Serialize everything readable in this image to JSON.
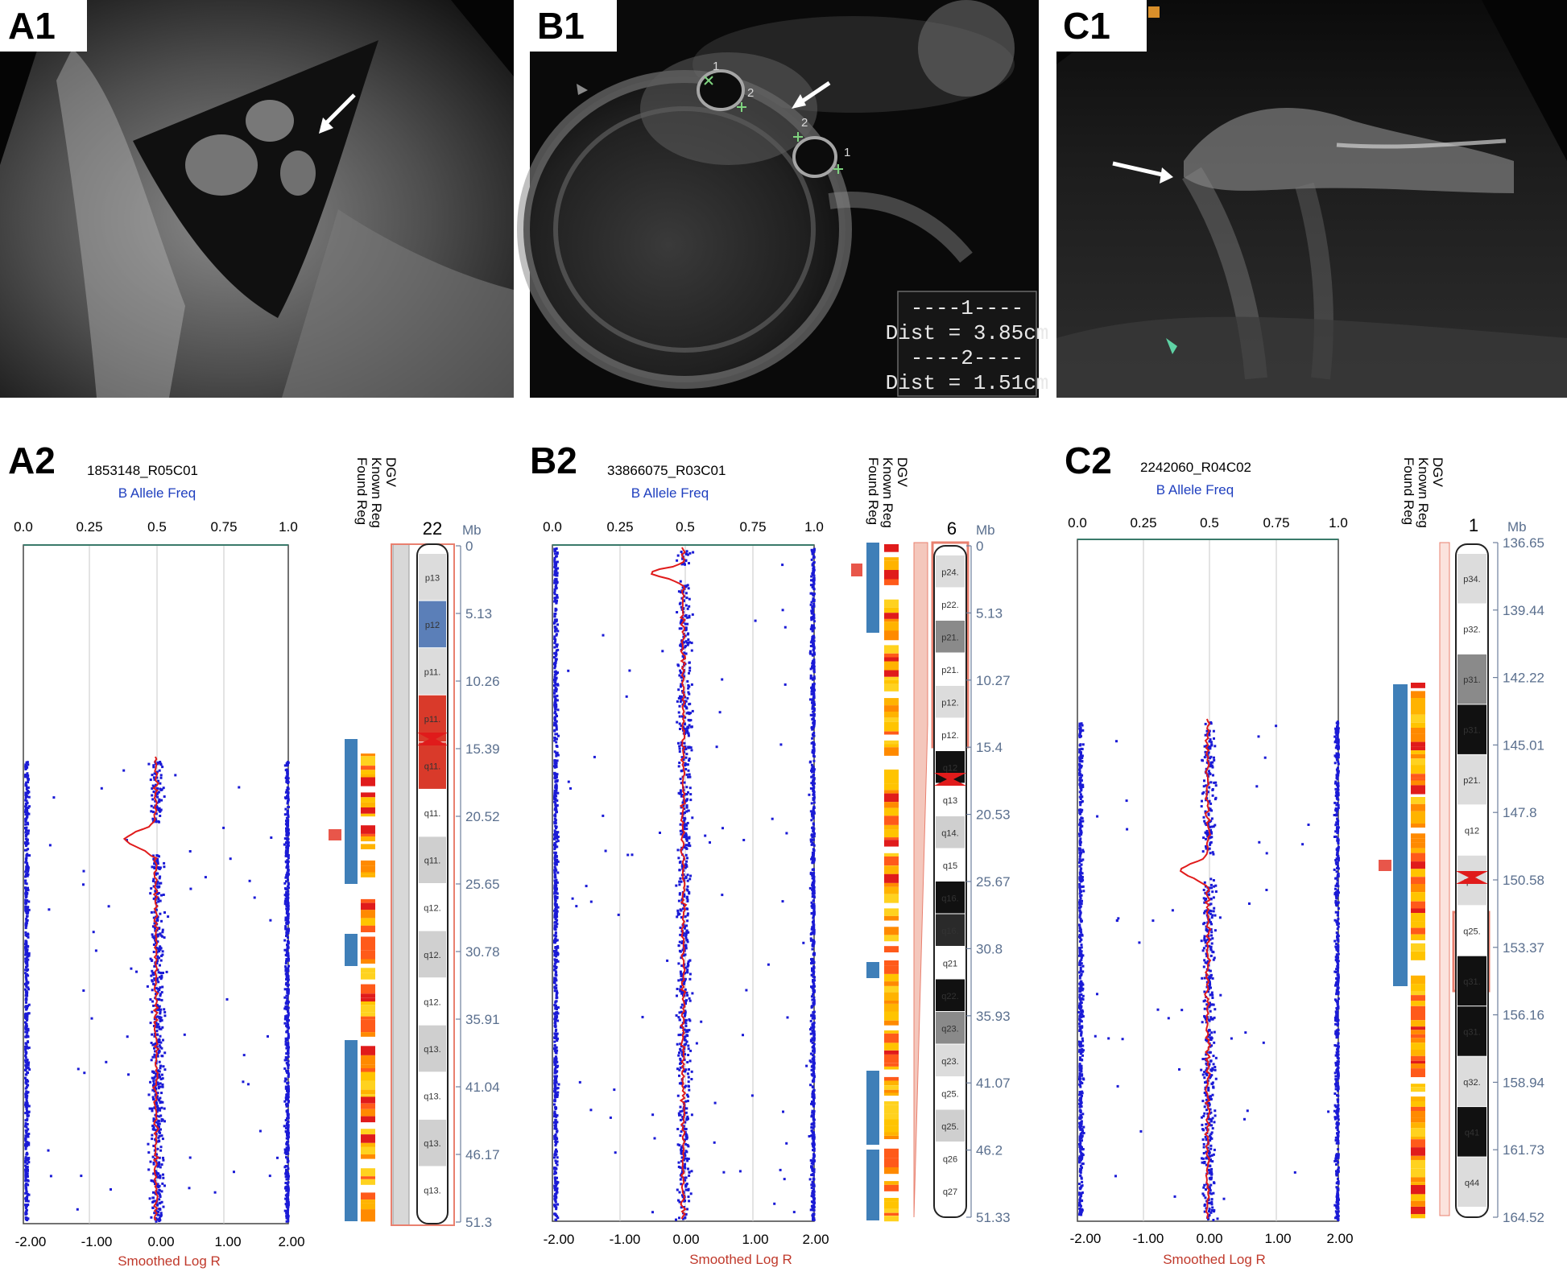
{
  "panels": [
    {
      "ultrasound": {
        "letter": "A1"
      },
      "plot": {
        "letter": "A2",
        "sample_id": "1853148_R05C01",
        "baf_label": "B Allele Freq",
        "logr_label": "Smoothed Log R",
        "baf_ticks": [
          "0.0",
          "0.25",
          "0.5",
          "0.75",
          "1.0"
        ],
        "logr_ticks": [
          "-2.00",
          "-1.00",
          "0.00",
          "1.00",
          "2.00"
        ],
        "track_labels": [
          "DGV",
          "Known Reg",
          "Found Reg"
        ],
        "chromosome": "22",
        "mb_label": "Mb",
        "mb_ticks": [
          "0",
          "5.13",
          "10.26",
          "15.39",
          "20.52",
          "25.65",
          "30.78",
          "35.91",
          "41.04",
          "46.17",
          "51.3"
        ],
        "bands": [
          "p13",
          "p12",
          "p11.",
          "p11.",
          "q11.",
          "q11.",
          "q11.",
          "q12.",
          "q12.",
          "q12.",
          "q13.",
          "q13.",
          "q13.",
          "q13."
        ]
      }
    },
    {
      "ultrasound": {
        "letter": "B1",
        "measurements": [
          "----1----",
          "Dist = 3.85cm",
          "----2----",
          "Dist = 1.51cm"
        ],
        "markers": [
          "1",
          "2",
          "2",
          "1"
        ]
      },
      "plot": {
        "letter": "B2",
        "sample_id": "33866075_R03C01",
        "baf_label": "B Allele Freq",
        "logr_label": "Smoothed Log R",
        "baf_ticks": [
          "0.0",
          "0.25",
          "0.5",
          "0.75",
          "1.0"
        ],
        "logr_ticks": [
          "-2.00",
          "-1.00",
          "0.00",
          "1.00",
          "2.00"
        ],
        "track_labels": [
          "DGV",
          "Known Reg",
          "Found Reg"
        ],
        "chromosome": "6",
        "mb_label": "Mb",
        "mb_ticks": [
          "0",
          "5.13",
          "10.27",
          "15.4",
          "20.53",
          "25.67",
          "30.8",
          "35.93",
          "41.07",
          "46.2",
          "51.33"
        ],
        "bands": [
          "p24.",
          "p22.",
          "p21.",
          "p21.",
          "p12.",
          "p12.",
          "q12",
          "q13",
          "q14.",
          "q15",
          "q16.",
          "q16.",
          "q21",
          "q22.",
          "q23.",
          "q23.",
          "q25.",
          "q25.",
          "q26",
          "q27"
        ]
      }
    },
    {
      "ultrasound": {
        "letter": "C1"
      },
      "plot": {
        "letter": "C2",
        "sample_id": "2242060_R04C02",
        "baf_label": "B Allele Freq",
        "logr_label": "Smoothed Log R",
        "baf_ticks": [
          "0.0",
          "0.25",
          "0.5",
          "0.75",
          "1.0"
        ],
        "logr_ticks": [
          "-2.00",
          "-1.00",
          "0.00",
          "1.00",
          "2.00"
        ],
        "track_labels": [
          "DGV",
          "Known Reg",
          "Found Reg"
        ],
        "chromosome": "1",
        "mb_label": "Mb",
        "mb_ticks": [
          "136.65",
          "139.44",
          "142.22",
          "145.01",
          "147.8",
          "150.58",
          "153.37",
          "156.16",
          "158.94",
          "161.73",
          "164.52"
        ],
        "bands": [
          "p34.",
          "p32.",
          "p31.",
          "p31.",
          "p21.",
          "q12",
          "q23.",
          "q25.",
          "q31.",
          "q31.",
          "q32.",
          "q41",
          "q44"
        ]
      }
    }
  ],
  "colors": {
    "baf_points": "#1a1ad6",
    "logr_line": "#e01b1b",
    "known_reg": "#3f7fb8",
    "found_reg": "#e8564a",
    "chromosome_highlight": "#e9806f"
  }
}
